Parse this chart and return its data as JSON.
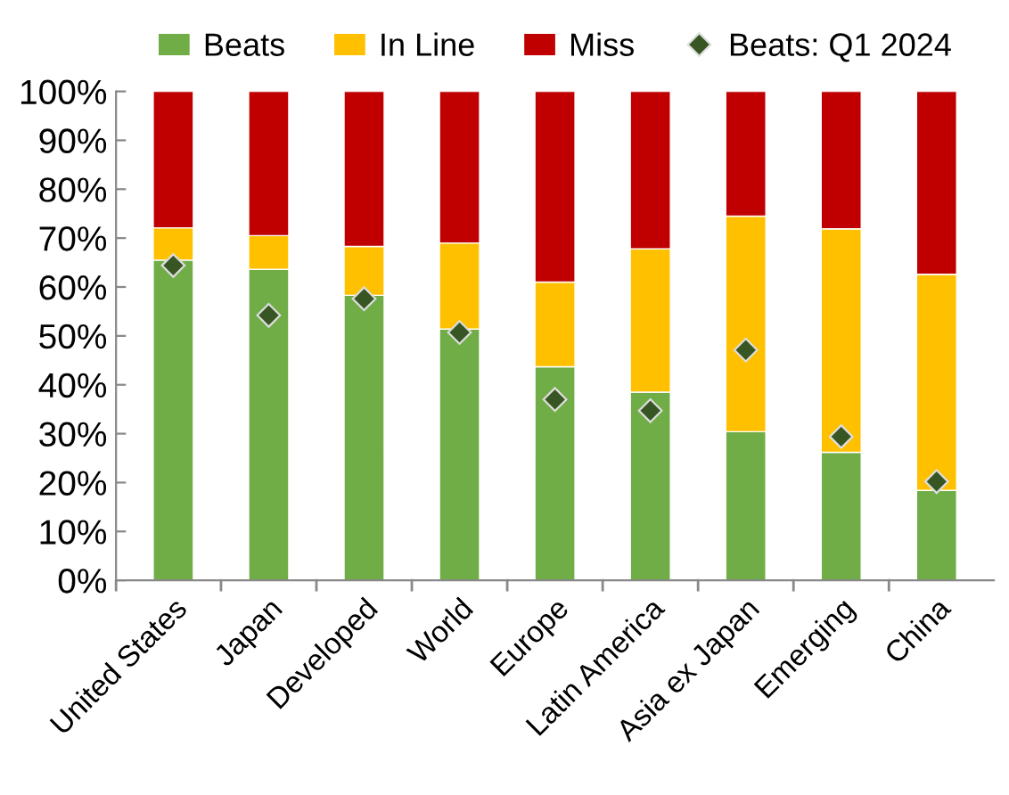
{
  "chart_data": {
    "type": "bar",
    "stacked": true,
    "categories": [
      "United States",
      "Japan",
      "Developed",
      "World",
      "Europe",
      "Latin America",
      "Asia ex Japan",
      "Emerging",
      "China"
    ],
    "series": [
      {
        "name": "Beats",
        "color": "#70ad47",
        "values": [
          65.5,
          63.6,
          58.3,
          51.4,
          43.7,
          38.5,
          30.4,
          26.2,
          18.4
        ]
      },
      {
        "name": "In Line",
        "color": "#ffc000",
        "values": [
          6.6,
          6.9,
          10.0,
          17.6,
          17.3,
          29.3,
          44.1,
          45.7,
          44.2
        ]
      },
      {
        "name": "Miss",
        "color": "#c00000",
        "values": [
          27.9,
          29.5,
          31.7,
          31.0,
          39.0,
          32.2,
          25.5,
          28.1,
          37.4
        ]
      },
      {
        "name": "Beats: Q1 2024",
        "type": "scatter",
        "marker": "diamond",
        "color": "#375623",
        "x": [
          "United States",
          "Japan",
          "Developed",
          "World",
          "Europe",
          "Latin America",
          "Asia ex Japan",
          "Emerging",
          "China"
        ],
        "values": [
          64.4,
          54.2,
          57.6,
          50.7,
          37.0,
          34.7,
          47.1,
          29.4,
          20.2
        ]
      }
    ],
    "ylim": [
      0,
      100
    ],
    "yticks": [
      {
        "value": 0,
        "label": "0%"
      },
      {
        "value": 10,
        "label": "10%"
      },
      {
        "value": 20,
        "label": "20%"
      },
      {
        "value": 30,
        "label": "30%"
      },
      {
        "value": 40,
        "label": "40%"
      },
      {
        "value": 50,
        "label": "50%"
      },
      {
        "value": 60,
        "label": "60%"
      },
      {
        "value": 70,
        "label": "70%"
      },
      {
        "value": 80,
        "label": "80%"
      },
      {
        "value": 90,
        "label": "90%"
      },
      {
        "value": 100,
        "label": "100%"
      }
    ],
    "grid": false,
    "legend": "top"
  }
}
